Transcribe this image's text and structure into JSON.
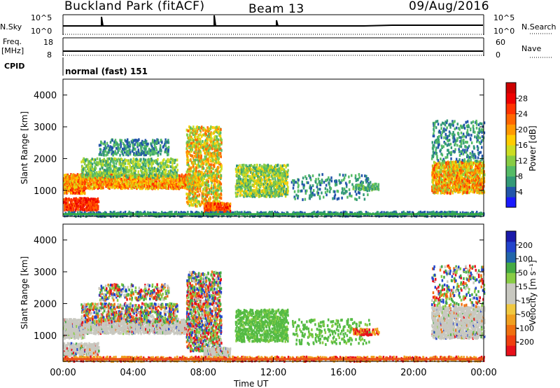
{
  "header": {
    "site": "Buckland Park (fitACF)",
    "beam": "Beam 13",
    "date": "09/Aug/2016"
  },
  "strips": {
    "nsky_label": "N.Sky",
    "nsky_top": "10^5",
    "nsky_bottom": "10^0",
    "nsearch_label": "N.Search",
    "nsearch_top": "10^5",
    "nsearch_bottom": "10^0",
    "freq_label": "Freq.",
    "freq_unit": "[MHz]",
    "freq_top": "18",
    "freq_bottom": "8",
    "nave_label": "Nave",
    "nave_top": "60",
    "nave_bottom": "0",
    "cpid_label": "CPID",
    "cpid_value": "normal (fast) 151"
  },
  "chart_data": [
    {
      "type": "heatmap",
      "name": "Power",
      "ylabel": "Slant Range [km]",
      "yticks": [
        "1000",
        "2000",
        "3000",
        "4000"
      ],
      "ylim": [
        180,
        4500
      ],
      "xlim_hours": [
        0,
        24
      ],
      "colorbar": {
        "label": "Power [dB]",
        "ticks": [
          "4",
          "8",
          "12",
          "16",
          "20",
          "24",
          "28"
        ],
        "colors": [
          "#1a1aff",
          "#2255aa",
          "#339977",
          "#55bb66",
          "#88cc44",
          "#ccdd22",
          "#ffcc00",
          "#ff9900",
          "#ff6600",
          "#ff3300",
          "#ee0000",
          "#cc0000"
        ]
      }
    },
    {
      "type": "heatmap",
      "name": "Velocity",
      "ylabel": "Slant Range [km]",
      "yticks": [
        "1000",
        "2000",
        "3000",
        "4000"
      ],
      "ylim": [
        180,
        4500
      ],
      "xlim_hours": [
        0,
        24
      ],
      "xticks": [
        "00:00",
        "04:00",
        "08:00",
        "12:00",
        "16:00",
        "20:00",
        "00:00"
      ],
      "xlabel": "Time UT",
      "colorbar": {
        "label": "Velocity [m s⁻¹]",
        "ticks": [
          "-200",
          "-100",
          "-50",
          "-15",
          "15",
          "50",
          "100",
          "200"
        ],
        "colors": [
          "#e8101a",
          "#f04010",
          "#f07010",
          "#f0a020",
          "#f0c840",
          "#c8c8c0",
          "#c8c8c0",
          "#88cc44",
          "#44aa44",
          "#2266aa",
          "#2244cc",
          "#1a1aaa"
        ]
      }
    }
  ]
}
